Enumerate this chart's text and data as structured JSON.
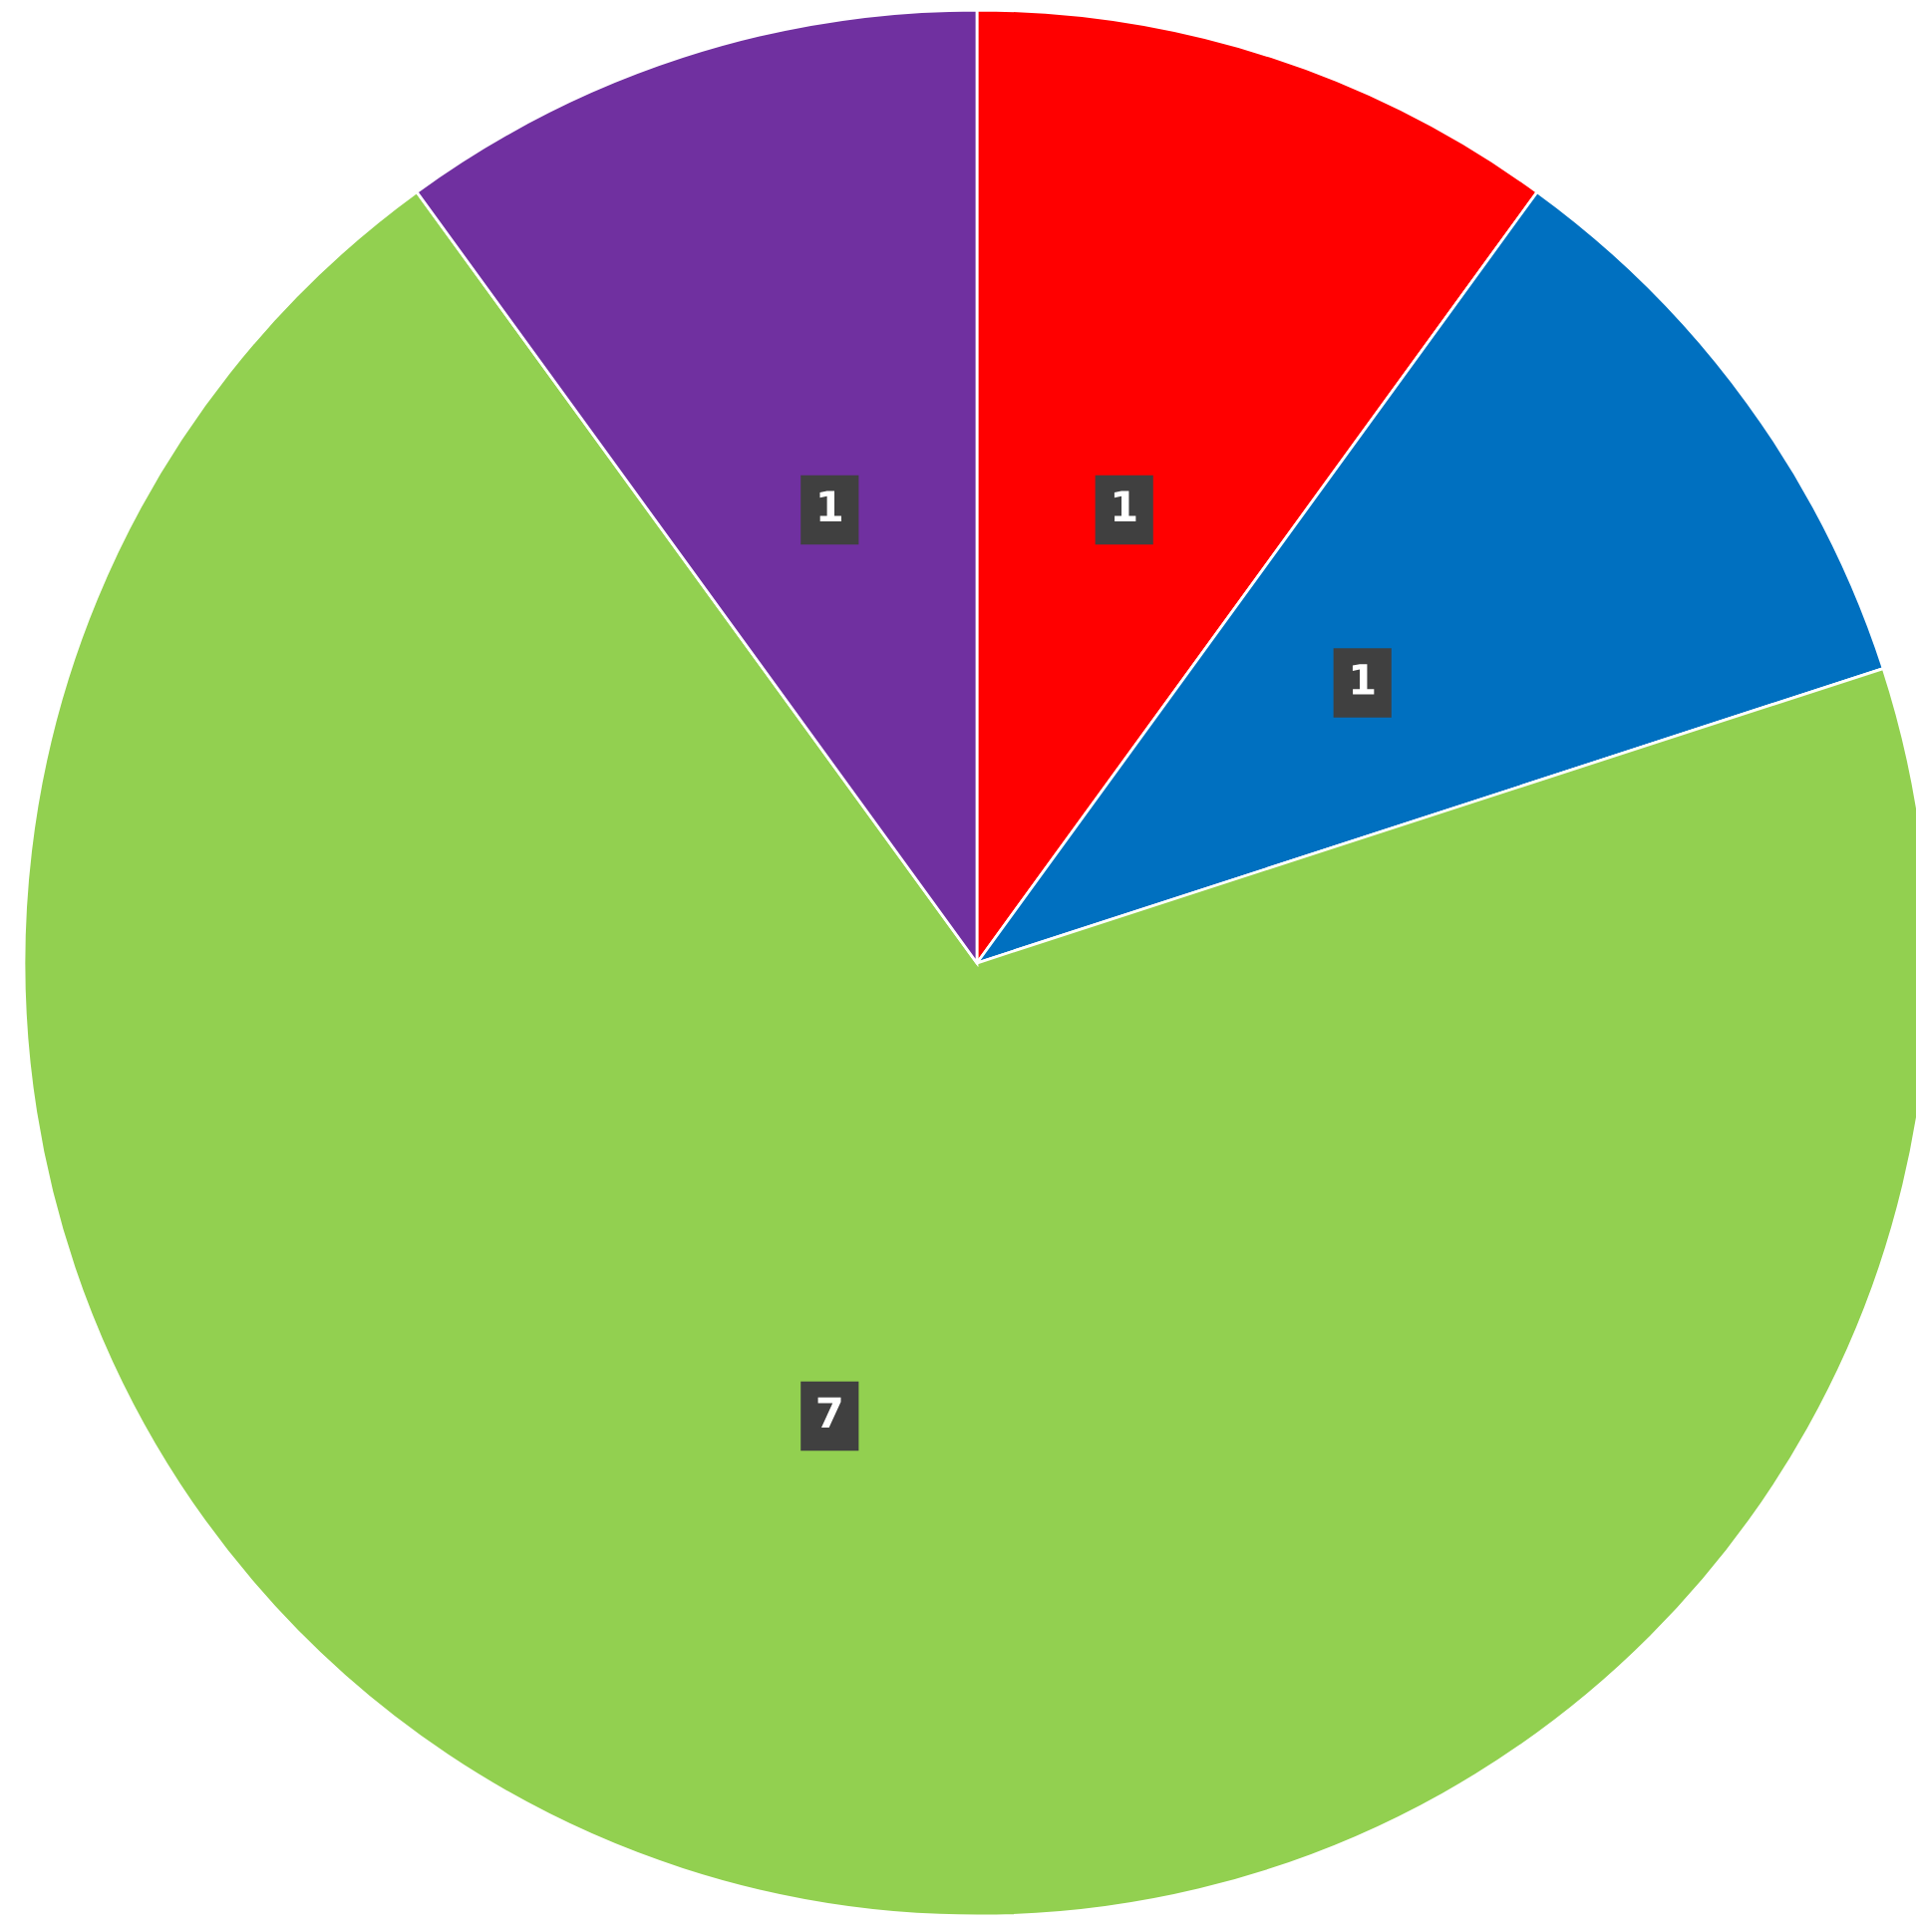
{
  "chart_data": {
    "type": "pie",
    "categories": [
      null,
      null,
      null,
      null
    ],
    "values": [
      1,
      1,
      7,
      1
    ],
    "colors": [
      "#ff0000",
      "#0070c0",
      "#92d050",
      "#7030a0"
    ],
    "data_labels": true
  }
}
